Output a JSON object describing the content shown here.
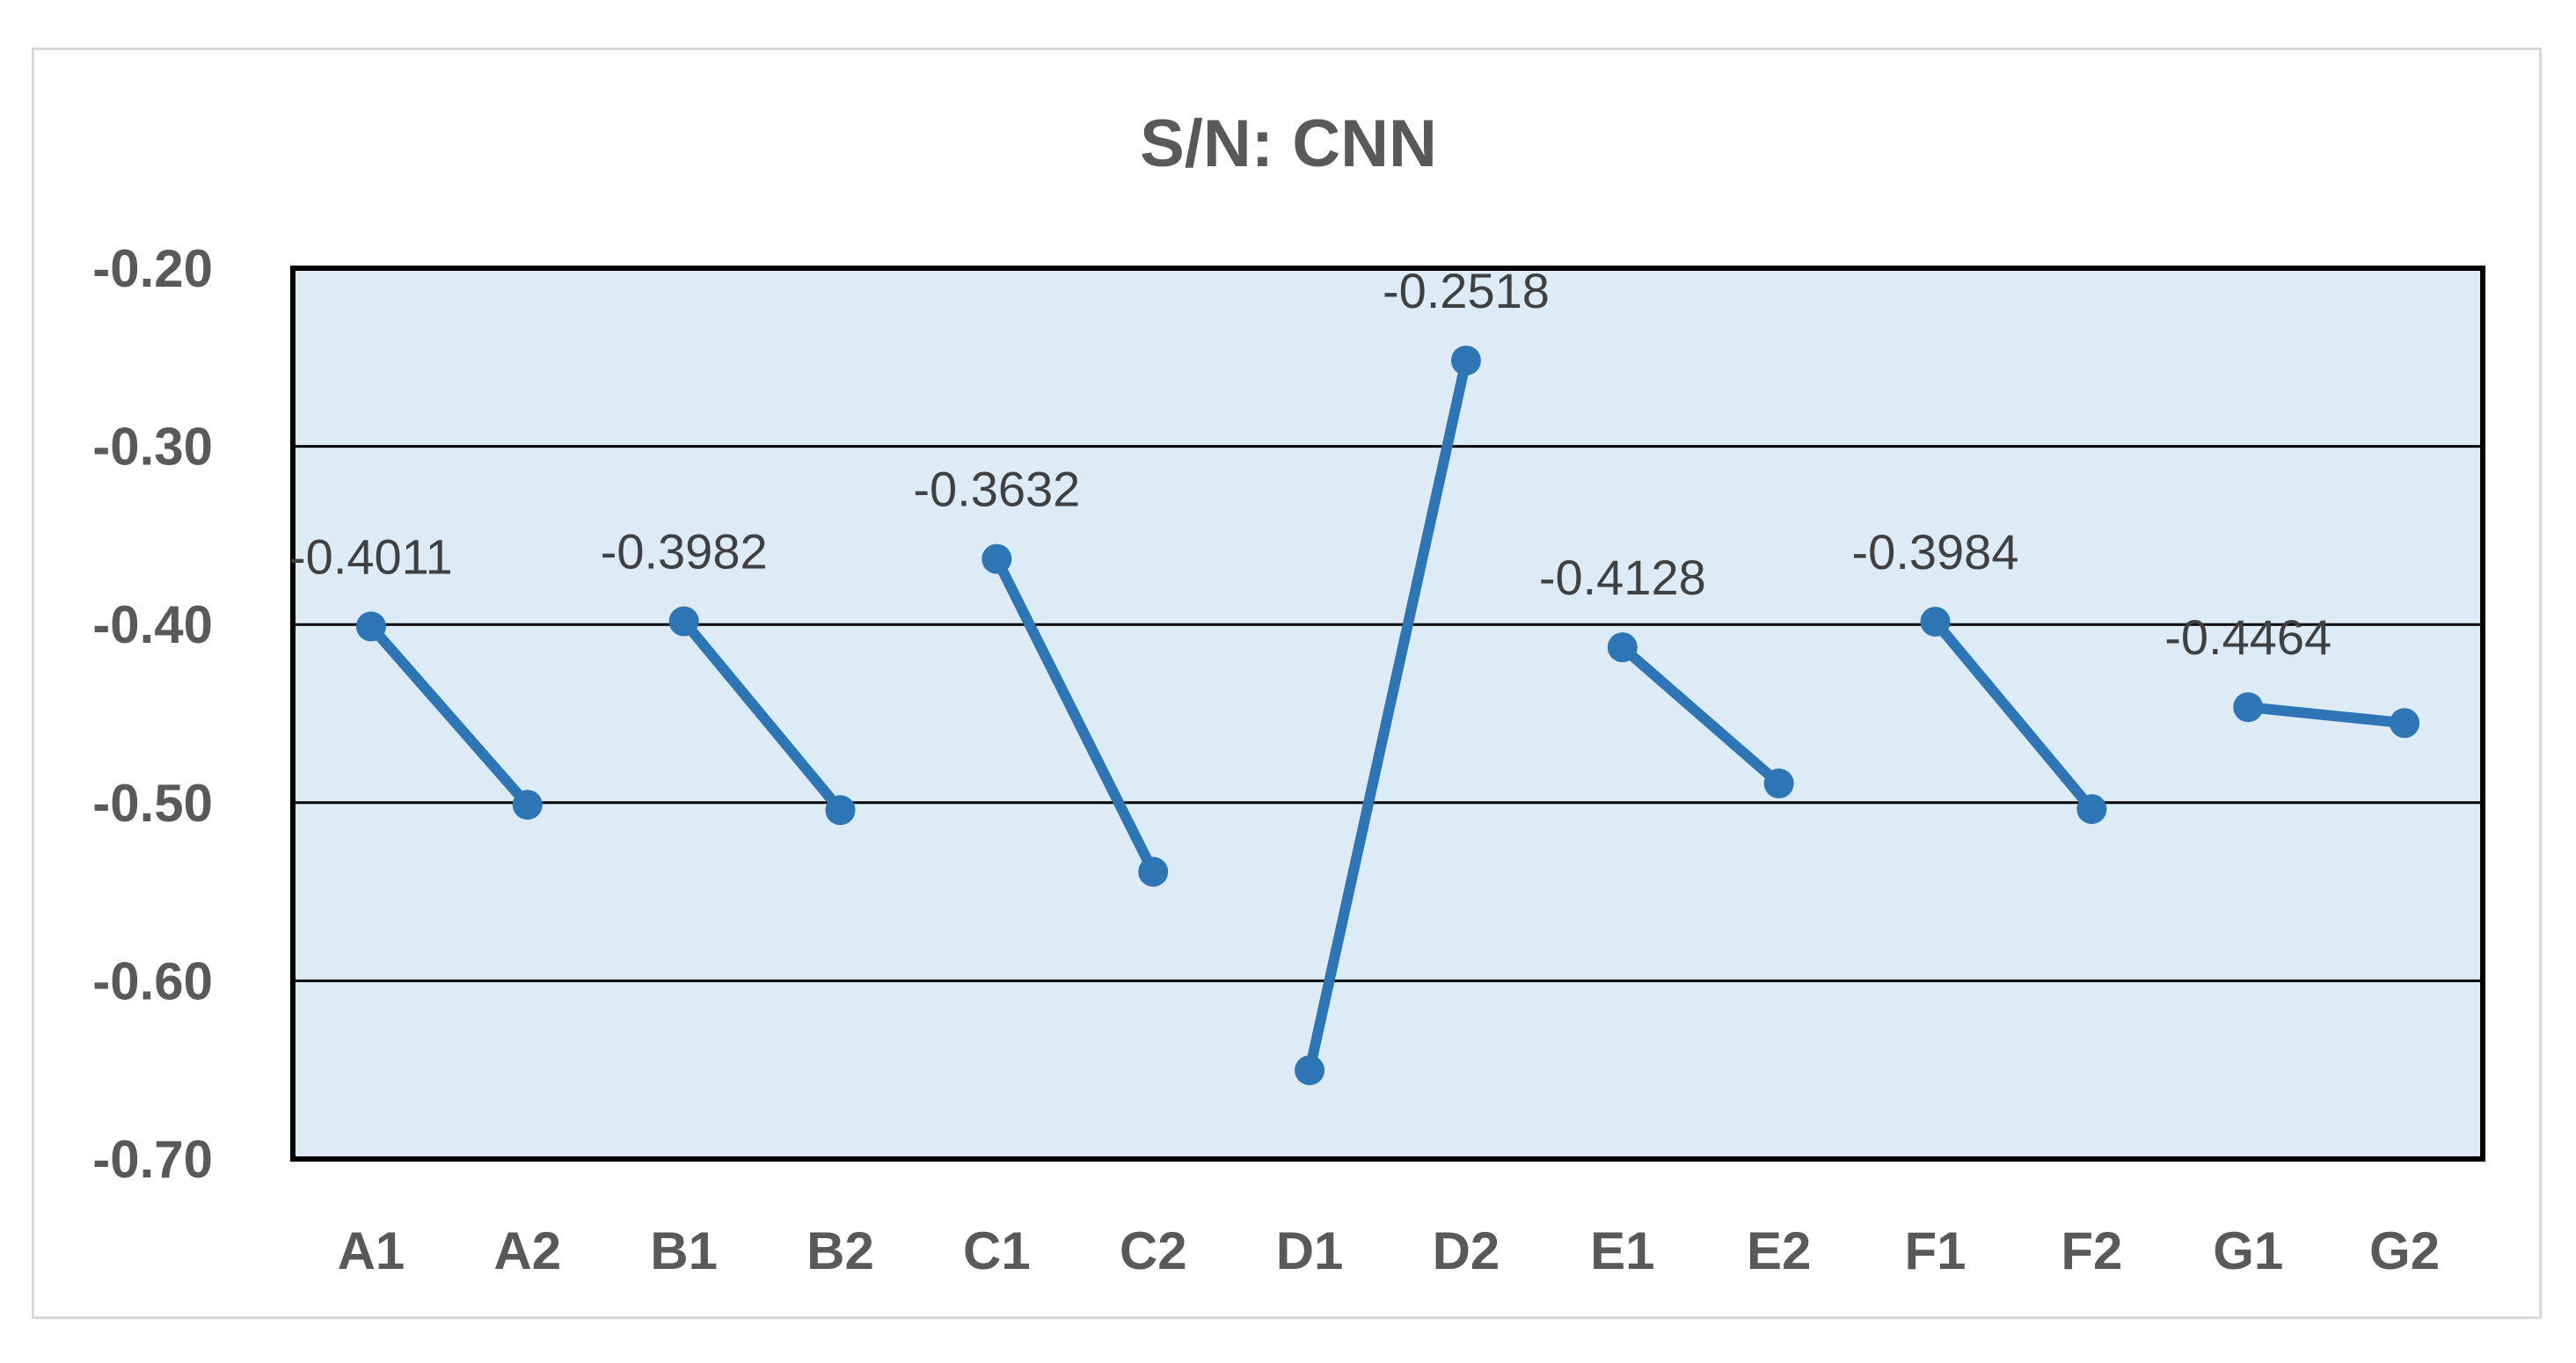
{
  "chart_data": {
    "type": "line",
    "title": "S/N: CNN",
    "xlabel": "",
    "ylabel": "",
    "ylim": [
      -0.7,
      -0.2
    ],
    "yticks": [
      "-0.20",
      "-0.30",
      "-0.40",
      "-0.50",
      "-0.60",
      "-0.70"
    ],
    "ytick_values": [
      -0.2,
      -0.3,
      -0.4,
      -0.5,
      -0.6,
      -0.7
    ],
    "categories": [
      "A1",
      "A2",
      "B1",
      "B2",
      "C1",
      "C2",
      "D1",
      "D2",
      "E1",
      "E2",
      "F1",
      "F2",
      "G1",
      "G2"
    ],
    "segments": [
      {
        "points": [
          {
            "x": "A1",
            "y": -0.4011
          },
          {
            "x": "A2",
            "y": -0.5012
          }
        ],
        "label": "-0.4011"
      },
      {
        "points": [
          {
            "x": "B1",
            "y": -0.3982
          },
          {
            "x": "B2",
            "y": -0.5042
          }
        ],
        "label": "-0.3982"
      },
      {
        "points": [
          {
            "x": "C1",
            "y": -0.3632
          },
          {
            "x": "C2",
            "y": -0.5388
          }
        ],
        "label": "-0.3632"
      },
      {
        "points": [
          {
            "x": "D1",
            "y": -0.6502
          },
          {
            "x": "D2",
            "y": -0.2518
          }
        ],
        "label": "-0.2518"
      },
      {
        "points": [
          {
            "x": "E1",
            "y": -0.4128
          },
          {
            "x": "E2",
            "y": -0.4892
          }
        ],
        "label": "-0.4128"
      },
      {
        "points": [
          {
            "x": "F1",
            "y": -0.3984
          },
          {
            "x": "F2",
            "y": -0.5036
          }
        ],
        "label": "-0.3984"
      },
      {
        "points": [
          {
            "x": "G1",
            "y": -0.4464
          },
          {
            "x": "G2",
            "y": -0.4553
          }
        ],
        "label": "-0.4464"
      }
    ],
    "grid": true,
    "legend": "none",
    "colors": {
      "series": "#2e75b6",
      "plot_background": "#ddebf7",
      "gridline": "#000000",
      "axis_text": "#595959",
      "label_text": "#404040"
    }
  }
}
